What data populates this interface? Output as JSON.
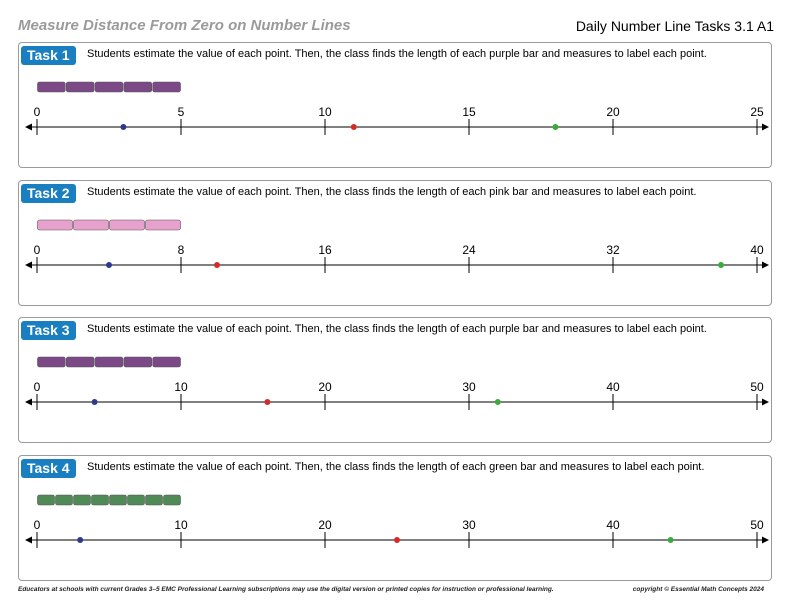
{
  "header": {
    "title": "Measure Distance From Zero on Number Lines",
    "right": "Daily Number Line Tasks 3.1 A1"
  },
  "tasks": [
    {
      "label": "Task 1",
      "description": "Students estimate the value of each point. Then, the class finds the length of each purple bar and measures to label each point.",
      "bar_color": "#7b4a86",
      "bar_segments": 5,
      "bar_end": 5,
      "max": 25,
      "ticks": [
        "0",
        "5",
        "10",
        "15",
        "20",
        "25"
      ],
      "points": [
        {
          "color": "#2b3a8c",
          "value": 3
        },
        {
          "color": "#d42a2a",
          "value": 11
        },
        {
          "color": "#3aaa3a",
          "value": 18
        }
      ]
    },
    {
      "label": "Task 2",
      "description": "Students estimate the value of each point. Then, the class finds the length of each pink bar and measures to label each point.",
      "bar_color": "#e6a1cc",
      "bar_segments": 4,
      "bar_end": 8,
      "max": 40,
      "ticks": [
        "0",
        "8",
        "16",
        "24",
        "32",
        "40"
      ],
      "points": [
        {
          "color": "#2b3a8c",
          "value": 4
        },
        {
          "color": "#d42a2a",
          "value": 10
        },
        {
          "color": "#3aaa3a",
          "value": 38
        }
      ]
    },
    {
      "label": "Task 3",
      "description": "Students estimate the value of each point. Then, the class finds the length of each purple bar and measures to label each point.",
      "bar_color": "#7b4a86",
      "bar_segments": 5,
      "bar_end": 10,
      "max": 50,
      "ticks": [
        "0",
        "10",
        "20",
        "30",
        "40",
        "50"
      ],
      "points": [
        {
          "color": "#2b3a8c",
          "value": 4
        },
        {
          "color": "#d42a2a",
          "value": 16
        },
        {
          "color": "#3aaa3a",
          "value": 32
        }
      ]
    },
    {
      "label": "Task 4",
      "description": "Students estimate the value of each point. Then, the class finds the length of each green bar and measures to label each point.",
      "bar_color": "#4f8a57",
      "bar_segments": 8,
      "bar_end": 10,
      "max": 50,
      "ticks": [
        "0",
        "10",
        "20",
        "30",
        "40",
        "50"
      ],
      "points": [
        {
          "color": "#2b3a8c",
          "value": 3
        },
        {
          "color": "#d42a2a",
          "value": 25
        },
        {
          "color": "#3aaa3a",
          "value": 44
        }
      ]
    }
  ],
  "footer": {
    "left": "Educators at schools with current Grades 3–5 EMC Professional Learning subscriptions may use the digital version or printed copies for instruction or professional learning.",
    "right": "copyright © Essential Math Concepts 2024"
  }
}
